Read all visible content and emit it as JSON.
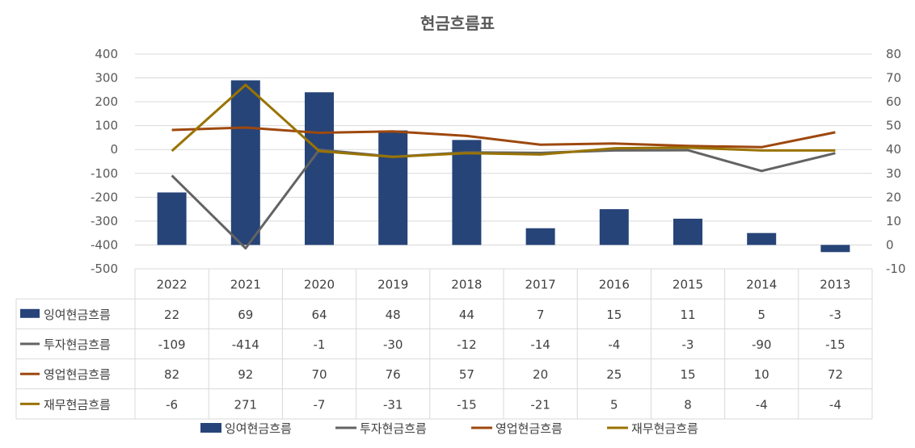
{
  "chart_data": {
    "type": "bar",
    "title": "현금흐름표",
    "categories": [
      "2022",
      "2021",
      "2020",
      "2019",
      "2018",
      "2017",
      "2016",
      "2015",
      "2014",
      "2013"
    ],
    "y_left": {
      "min": -500,
      "max": 400,
      "step": 100
    },
    "y_right": {
      "min": -10,
      "max": 80,
      "step": 10
    },
    "series": [
      {
        "name": "잉여현금흐름",
        "type": "bar",
        "axis": "right",
        "color": "#264478",
        "values": [
          22,
          69,
          64,
          48,
          44,
          7,
          15,
          11,
          5,
          -3
        ]
      },
      {
        "name": "투자현금흐름",
        "type": "line",
        "axis": "left",
        "color": "#636363",
        "values": [
          -109,
          -414,
          -1,
          -30,
          -12,
          -14,
          -4,
          -3,
          -90,
          -15
        ]
      },
      {
        "name": "영업현금흐름",
        "type": "line",
        "axis": "left",
        "color": "#9E480E",
        "values": [
          82,
          92,
          70,
          76,
          57,
          20,
          25,
          15,
          10,
          72
        ]
      },
      {
        "name": "재무현금흐름",
        "type": "line",
        "axis": "left",
        "color": "#997300",
        "values": [
          -6,
          271,
          -7,
          -31,
          -15,
          -21,
          5,
          8,
          -4,
          -4
        ]
      }
    ],
    "legend_position": "bottom",
    "data_table": true,
    "grid": true
  }
}
